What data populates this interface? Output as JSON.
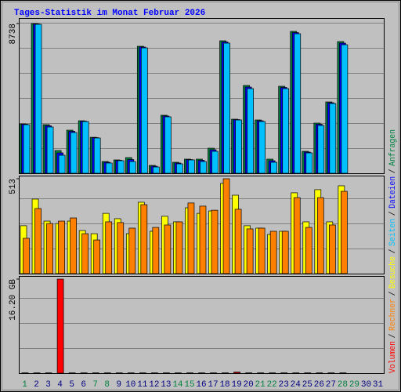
{
  "title": "Tages-Statistik im Monat Februar 2026",
  "legend_separator": "/",
  "chart_data": [
    {
      "type": "bar",
      "ylim": [
        0,
        9060
      ],
      "yticks": [
        8738
      ],
      "grid": true,
      "series": [
        {
          "name": "Anfragen",
          "color": "#008040",
          "values": [
            2880,
            8738,
            2837,
            1327,
            2516,
            3065,
            2100,
            686,
            778,
            915,
            7412,
            458,
            3386,
            641,
            824,
            824,
            1464,
            7732,
            3157,
            5124,
            3111,
            824,
            5078,
            8281,
            1281,
            2928,
            4163,
            7686,
            null,
            null,
            null
          ]
        },
        {
          "name": "Dateien",
          "color": "#0000ff",
          "values": [
            2860,
            8715,
            2770,
            1190,
            2450,
            3040,
            2080,
            640,
            755,
            800,
            7366,
            412,
            3340,
            595,
            800,
            755,
            1372,
            7663,
            3134,
            5032,
            3065,
            732,
            5010,
            8212,
            1235,
            2860,
            4117,
            7594,
            null,
            null,
            null
          ]
        },
        {
          "name": "Seiten",
          "color": "#00c0ff",
          "values": [
            2837,
            8693,
            2700,
            1052,
            2379,
            3020,
            2059,
            595,
            732,
            686,
            7320,
            366,
            3294,
            549,
            778,
            686,
            1281,
            7595,
            3111,
            4941,
            3020,
            641,
            4941,
            8144,
            1190,
            2791,
            4072,
            7503,
            null,
            null,
            null
          ]
        }
      ]
    },
    {
      "type": "bar",
      "ylim": [
        0,
        530
      ],
      "yticks": [
        513
      ],
      "grid": true,
      "series": [
        {
          "name": "Besuche",
          "color": "#ffff00",
          "values": [
            259,
            403,
            284,
            271,
            284,
            233,
            216,
            326,
            297,
            216,
            386,
            229,
            310,
            280,
            356,
            326,
            339,
            488,
            424,
            259,
            246,
            212,
            229,
            437,
            280,
            454,
            280,
            475,
            null,
            null,
            null
          ]
        },
        {
          "name": "Rechner",
          "color": "#ff8000",
          "values": [
            191,
            352,
            271,
            284,
            301,
            216,
            182,
            280,
            276,
            246,
            373,
            250,
            263,
            280,
            382,
            365,
            343,
            513,
            348,
            242,
            246,
            229,
            229,
            411,
            250,
            411,
            263,
            445,
            null,
            null,
            null
          ]
        }
      ]
    },
    {
      "type": "bar",
      "ylim": [
        0,
        16.74
      ],
      "yticks": [
        {
          "value": 16.2,
          "label": "16.20 GB"
        }
      ],
      "grid": true,
      "categories": [
        "1",
        "2",
        "3",
        "4",
        "5",
        "6",
        "7",
        "8",
        "9",
        "10",
        "11",
        "12",
        "13",
        "14",
        "15",
        "16",
        "17",
        "18",
        "19",
        "20",
        "21",
        "22",
        "23",
        "24",
        "25",
        "26",
        "27",
        "28",
        "29",
        "30",
        "31"
      ],
      "category_colors": [
        "#008040",
        "#000080",
        "#000080",
        "#000080",
        "#000080",
        "#000080",
        "#008040",
        "#008040",
        "#000080",
        "#000080",
        "#000080",
        "#000080",
        "#000080",
        "#008040",
        "#008040",
        "#000080",
        "#000080",
        "#000080",
        "#000080",
        "#000080",
        "#008040",
        "#008040",
        "#000080",
        "#000080",
        "#000080",
        "#000080",
        "#000080",
        "#008040",
        "#008040",
        "#000080",
        "#000080"
      ],
      "series": [
        {
          "name": "Volumen",
          "color": "#ff0000",
          "values": [
            0.06,
            0.06,
            0.06,
            16.2,
            0.06,
            0.06,
            0.06,
            0.06,
            0.06,
            0.06,
            0.06,
            0.06,
            0.06,
            0.06,
            0.06,
            0.06,
            0.06,
            0.06,
            0.2,
            0.06,
            0.06,
            0.06,
            0.06,
            0.06,
            0.06,
            0.06,
            0.06,
            0.06,
            null,
            null,
            null
          ]
        }
      ]
    }
  ]
}
